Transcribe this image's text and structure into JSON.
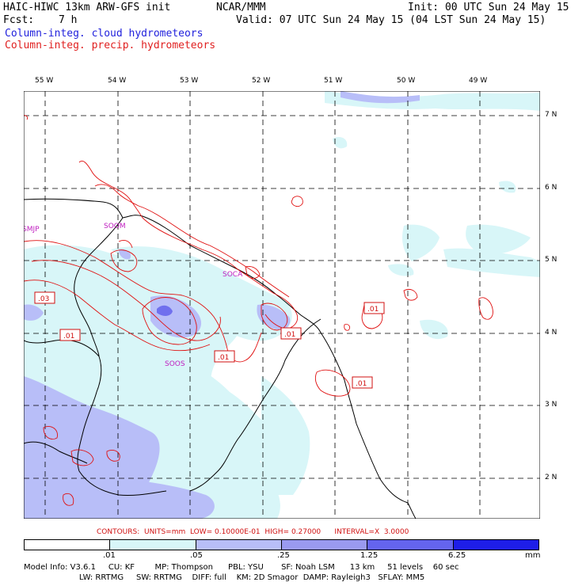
{
  "header": {
    "line1_left": "HAIC-HIWC 13km ARW-GFS init",
    "line1_mid": "NCAR/MMM",
    "line1_right": "Init: 00 UTC Sun 24 May 15",
    "line2_left": "Fcst:",
    "line2_hours": "7 h",
    "line2_right": "Valid: 07 UTC Sun 24 May 15 (04 LST Sun 24 May 15)",
    "field1": "Column-integ. cloud hydrometeors",
    "field2": "Column-integ. precip. hydrometeors"
  },
  "lon_ticks": [
    "55 W",
    "54 W",
    "53 W",
    "52 W",
    "51 W",
    "50 W",
    "49 W"
  ],
  "lat_ticks": [
    "7 N",
    "6 N",
    "5 N",
    "4 N",
    "3 N",
    "2 N"
  ],
  "station_labels": [
    "SMJP",
    "SOOM",
    "SOCA",
    "SOOS"
  ],
  "contour_labels": [
    ".03",
    ".01",
    ".01",
    ".01",
    ".01",
    ".01"
  ],
  "contour_info": "CONTOURS:  UNITS=mm  LOW= 0.10000E-01  HIGH= 0.27000      INTERVAL=X  3.0000",
  "colorbar": {
    "labels": [
      ".01",
      ".05",
      ".25",
      "1.25",
      "6.25",
      "mm"
    ],
    "colors": [
      "#ffffff",
      "#d8f6f8",
      "#b8bef8",
      "#9a9af0",
      "#6464ee",
      "#1e1ee8"
    ]
  },
  "footer": {
    "line1": "Model Info: V3.6.1     CU: KF        MP: Thompson      PBL: YSU       SF: Noah LSM      13 km     51 levels    60 sec",
    "line2": "                      LW: RRTMG     SW: RRTMG    DIFF: full    KM: 2D Smagor  DAMP: Rayleigh3   SFLAY: MM5"
  },
  "colors": {
    "cloud_blue": "#1f1fdc",
    "precip_red": "#e02020",
    "contour_red": "#e01010"
  }
}
